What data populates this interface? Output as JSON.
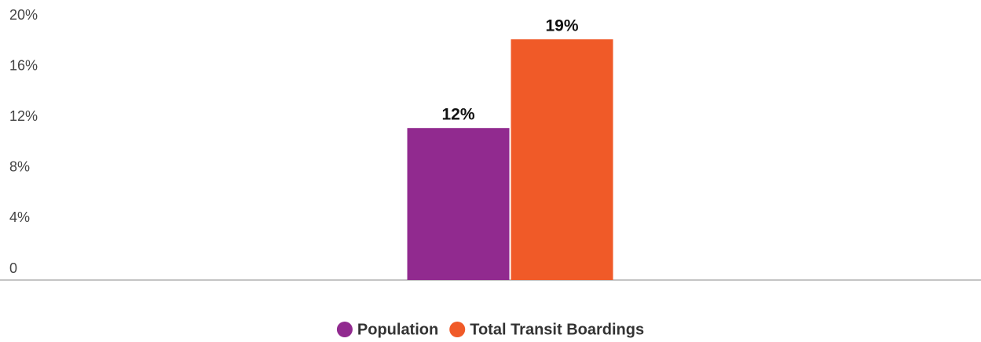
{
  "chart_data": {
    "type": "bar",
    "categories": [
      null
    ],
    "series": [
      {
        "name": "Population",
        "color": "#912a8f",
        "values": [
          12
        ],
        "value_labels": [
          "12%"
        ]
      },
      {
        "name": "Total Transit Boardings",
        "color": "#f05a28",
        "values": [
          19
        ],
        "value_labels": [
          "19%"
        ]
      }
    ],
    "ylim": [
      0,
      20
    ],
    "yticks": [
      0,
      {
        "value": 4,
        "label": "4%"
      },
      {
        "value": 8,
        "label": "8%"
      },
      {
        "value": 12,
        "label": "12%"
      },
      {
        "value": 16,
        "label": "16%"
      },
      {
        "value": 20,
        "label": "20%"
      }
    ],
    "grid": false,
    "legend": "bottom"
  }
}
